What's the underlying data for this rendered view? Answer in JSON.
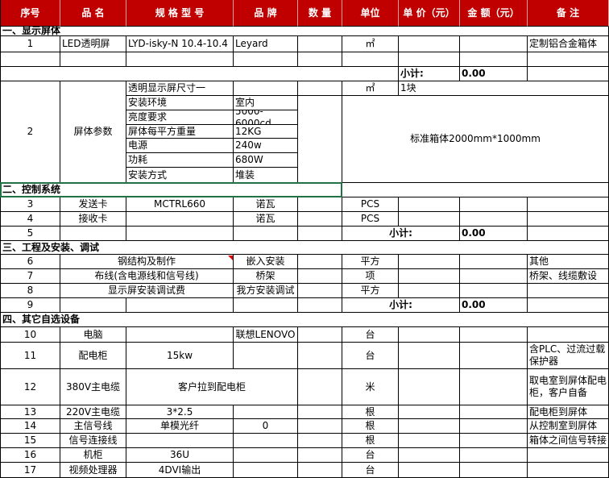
{
  "header": [
    "序号",
    "品 名",
    "规 格 型 号",
    "品 牌",
    "数 量",
    "单位",
    "单 价（元）",
    "金 额（元）",
    "备 注"
  ],
  "sections": [
    "一、显示屏体",
    "二、控制系统",
    "三、工程及安装、调试",
    "四、其它自选设备"
  ],
  "items": [
    {
      "no": "1",
      "name": "LED透明屏",
      "model": "LYD-isky-N 10.4-10.4",
      "brand": "Leyard",
      "unit": "㎡",
      "note": "定制铝合金箱体"
    },
    {
      "no": "2",
      "name": "屏体参数",
      "specs": [
        [
          "透明显示屏尺寸一"
        ],
        [
          "安装环境",
          "室内"
        ],
        [
          "亮度要求",
          "5000-6000cd"
        ],
        [
          "屏体每平方重量",
          "12KG"
        ],
        [
          "电源",
          "240w"
        ],
        [
          "功耗",
          "680W"
        ],
        [
          "安装方式",
          "堆装"
        ]
      ],
      "unit": "㎡",
      "price": "1块",
      "note": "标准箱体2000mm*1000mm"
    },
    {
      "no": "3",
      "name": "发送卡",
      "model": "MCTRL660",
      "brand": "诺瓦",
      "unit": "PCS"
    },
    {
      "no": "4",
      "name": "接收卡",
      "brand": "诺瓦",
      "unit": "PCS"
    },
    {
      "no": "5"
    },
    {
      "no": "6",
      "name": "钢结构及制作",
      "brand": "嵌入安装",
      "unit": "平方",
      "note": "其他"
    },
    {
      "no": "7",
      "name": "布线(含电源线和信号线)",
      "brand": "桥架",
      "unit": "项",
      "note": "桥架、线缆敷设"
    },
    {
      "no": "8",
      "name": "显示屏安装调试费",
      "brand": "我方安装调试",
      "unit": "平方"
    },
    {
      "no": "9"
    },
    {
      "no": "10",
      "name": "电脑",
      "brand": "联想LENOVO",
      "unit": "台"
    },
    {
      "no": "11",
      "name": "配电柜",
      "model": "15kw",
      "unit": "台",
      "note": "含PLC、过流过载保护器"
    },
    {
      "no": "12",
      "name": "380V主电缆",
      "model": "客户拉到配电柜",
      "unit": "米",
      "note": "取电室到屏体配电柜，客户自备"
    },
    {
      "no": "13",
      "name": "220V主电缆",
      "model": "3*2.5",
      "unit": "根",
      "note": "配电柜到屏体"
    },
    {
      "no": "14",
      "name": "主信号线",
      "model": "单模光纤",
      "brand": "0",
      "unit": "根",
      "note": "从控制室到屏体"
    },
    {
      "no": "15",
      "name": "信号连接线",
      "unit": "根",
      "note": "箱体之间信号转接"
    },
    {
      "no": "16",
      "name": "机柜",
      "model": "36U",
      "unit": "台"
    },
    {
      "no": "17",
      "name": "视频处理器",
      "model": "4DVI输出",
      "unit": "台"
    }
  ],
  "subtotals": [
    {
      "label": "小计:",
      "value": "0.00"
    },
    {
      "label": "小计:",
      "value": "0.00"
    },
    {
      "label": "小计:",
      "value": "0.00"
    }
  ]
}
